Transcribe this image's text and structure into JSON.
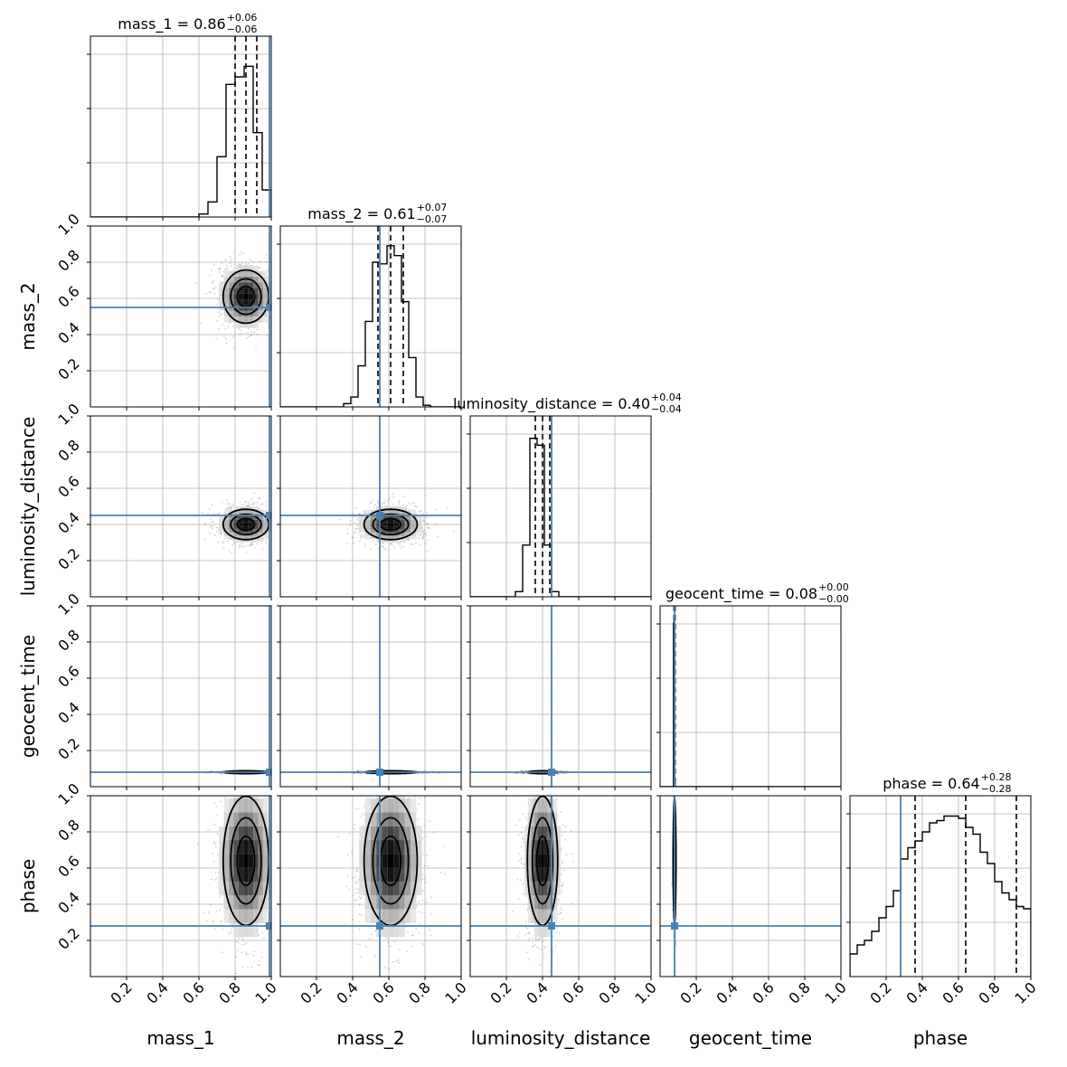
{
  "chart_data": {
    "type": "corner",
    "parameters": [
      "mass_1",
      "mass_2",
      "luminosity_distance",
      "geocent_time",
      "phase"
    ],
    "axis_range": [
      0,
      1
    ],
    "x_tick_labels": [
      "0.2",
      "0.4",
      "0.6",
      "0.8",
      "1.0"
    ],
    "y_tick_labels": [
      "0.2",
      "0.4",
      "0.6",
      "0.8",
      "1.0"
    ],
    "grid": true,
    "truth_color": "#4682b4",
    "truths": {
      "mass_1": 0.99,
      "mass_2": 0.55,
      "luminosity_distance": 0.45,
      "geocent_time": 0.08,
      "phase": 0.28
    },
    "titles": [
      {
        "param": "mass_1",
        "label": "mass_1 = 0.86",
        "plus": "+0.06",
        "minus": "−0.06",
        "median": 0.86,
        "q_low": 0.8,
        "q_high": 0.92
      },
      {
        "param": "mass_2",
        "label": "mass_2 = 0.61",
        "plus": "+0.07",
        "minus": "−0.07",
        "median": 0.61,
        "q_low": 0.54,
        "q_high": 0.68
      },
      {
        "param": "luminosity_distance",
        "label": "luminosity_distance = 0.40",
        "plus": "+0.04",
        "minus": "−0.04",
        "median": 0.4,
        "q_low": 0.36,
        "q_high": 0.44
      },
      {
        "param": "geocent_time",
        "label": "geocent_time = 0.08",
        "plus": "+0.00",
        "minus": "−0.00",
        "median": 0.08,
        "q_low": 0.077,
        "q_high": 0.083
      },
      {
        "param": "phase",
        "label": "phase = 0.64",
        "plus": "+0.28",
        "minus": "−0.28",
        "median": 0.64,
        "q_low": 0.36,
        "q_high": 0.92
      }
    ],
    "marginal_histograms": {
      "mass_1": {
        "bin_start": 0.6,
        "bin_width": 0.05,
        "counts": [
          0.02,
          0.1,
          0.4,
          0.88,
          0.93,
          1.0,
          0.56,
          0.18
        ],
        "ylim": [
          0,
          1.2
        ]
      },
      "mass_2": {
        "bin_start": 0.35,
        "bin_width": 0.04,
        "counts": [
          0.02,
          0.06,
          0.25,
          0.52,
          0.88,
          0.87,
          0.98,
          0.92,
          0.64,
          0.3,
          0.06,
          0.01
        ],
        "ylim": [
          0,
          1.1
        ]
      },
      "luminosity_distance": {
        "bin_start": 0.25,
        "bin_width": 0.04,
        "counts": [
          0.03,
          0.3,
          0.92,
          0.88,
          0.3,
          0.03
        ],
        "ylim": [
          0,
          1.05
        ]
      },
      "geocent_time": {
        "bin_start": 0.074,
        "bin_width": 0.003,
        "counts": [
          0.95,
          0.97,
          0.02
        ],
        "ylim": [
          0,
          1.05
        ]
      },
      "phase": {
        "bin_start": 0.0,
        "bin_width": 0.04,
        "counts": [
          0.1,
          0.14,
          0.16,
          0.2,
          0.26,
          0.31,
          0.38,
          0.52,
          0.57,
          0.6,
          0.64,
          0.68,
          0.69,
          0.71,
          0.71,
          0.7,
          0.66,
          0.63,
          0.55,
          0.5,
          0.42,
          0.37,
          0.34,
          0.31,
          0.3
        ],
        "ylim": [
          0,
          0.8
        ]
      }
    },
    "joint_panels": [
      {
        "x": "mass_1",
        "y": "mass_2",
        "mean": [
          0.86,
          0.61
        ],
        "sd": [
          0.06,
          0.07
        ]
      },
      {
        "x": "mass_1",
        "y": "luminosity_distance",
        "mean": [
          0.86,
          0.4
        ],
        "sd": [
          0.06,
          0.04
        ]
      },
      {
        "x": "mass_2",
        "y": "luminosity_distance",
        "mean": [
          0.61,
          0.4
        ],
        "sd": [
          0.07,
          0.04
        ]
      },
      {
        "x": "mass_1",
        "y": "geocent_time",
        "mean": [
          0.86,
          0.08
        ],
        "sd": [
          0.06,
          0.003
        ]
      },
      {
        "x": "mass_2",
        "y": "geocent_time",
        "mean": [
          0.61,
          0.08
        ],
        "sd": [
          0.07,
          0.003
        ]
      },
      {
        "x": "luminosity_distance",
        "y": "geocent_time",
        "mean": [
          0.4,
          0.08
        ],
        "sd": [
          0.04,
          0.003
        ]
      },
      {
        "x": "mass_1",
        "y": "phase",
        "mean": [
          0.86,
          0.64
        ],
        "sd": [
          0.06,
          0.17
        ]
      },
      {
        "x": "mass_2",
        "y": "phase",
        "mean": [
          0.61,
          0.64
        ],
        "sd": [
          0.07,
          0.17
        ]
      },
      {
        "x": "luminosity_distance",
        "y": "phase",
        "mean": [
          0.4,
          0.64
        ],
        "sd": [
          0.04,
          0.17
        ]
      },
      {
        "x": "geocent_time",
        "y": "phase",
        "mean": [
          0.08,
          0.64
        ],
        "sd": [
          0.003,
          0.17
        ]
      }
    ]
  }
}
